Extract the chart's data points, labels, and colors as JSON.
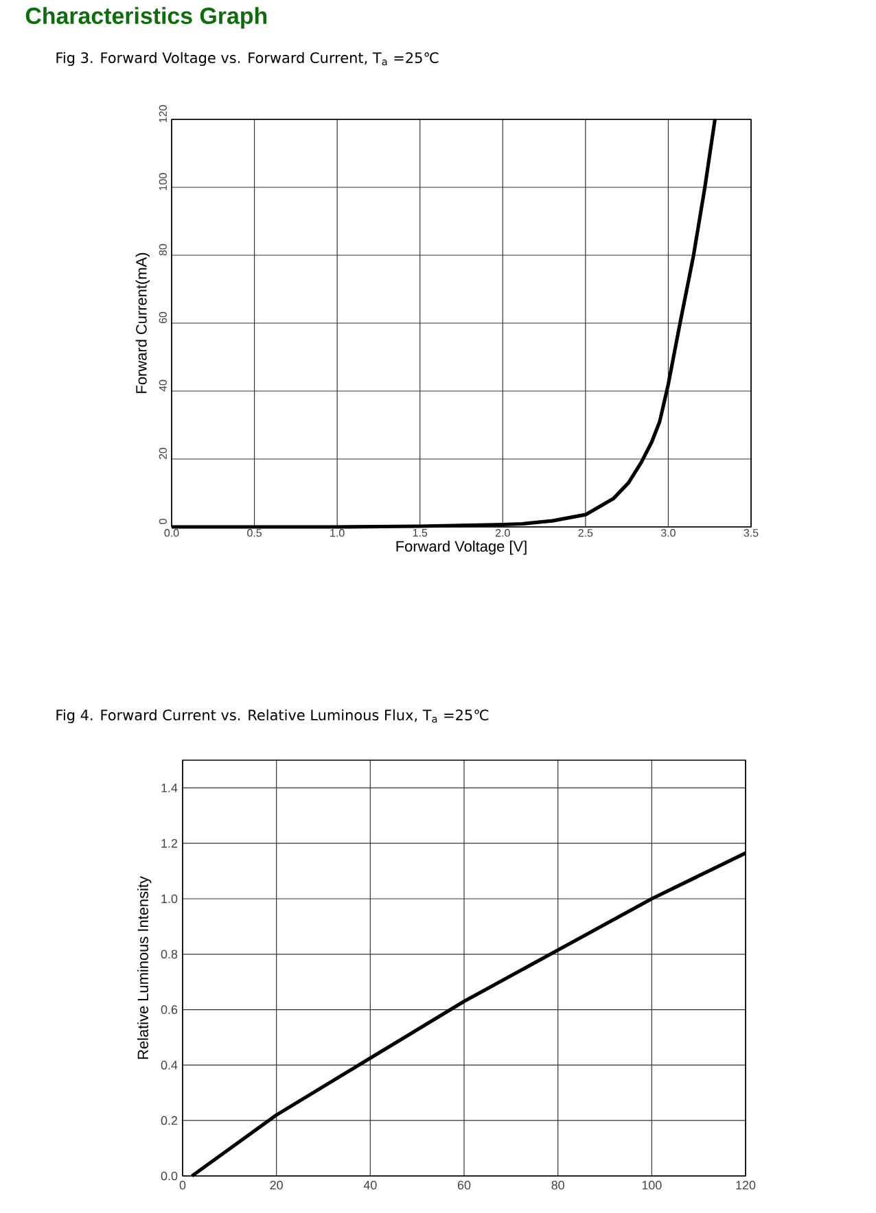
{
  "chart_data": [
    {
      "type": "line",
      "title": "Characteristics Graph",
      "subtitle": "Fig 3. Forward Voltage vs. Forward Current, T$_{a}$ =25℃",
      "xlabel": "Forward Voltage [V]",
      "ylabel": "Forward Current(mA)",
      "xlim": [
        0,
        3.5
      ],
      "ylim": [
        0,
        120
      ],
      "xticks": [
        {
          "value": 0,
          "label": "0.0"
        },
        {
          "value": 0.5,
          "label": "0.5"
        },
        {
          "value": 1,
          "label": "1.0"
        },
        {
          "value": 1.5,
          "label": "1.5"
        },
        {
          "value": 2,
          "label": "2.0"
        },
        {
          "value": 2.5,
          "label": "2.5"
        },
        {
          "value": 3,
          "label": "3.0"
        },
        {
          "value": 3.5,
          "label": "3.5"
        }
      ],
      "yticks": [
        0,
        20,
        40,
        60,
        80,
        100,
        120
      ],
      "grid": true,
      "series": [
        {
          "color": "#000000",
          "x": [
            0,
            0.5,
            1.0,
            1.5,
            1.8,
            2.0,
            2.12,
            2.3,
            2.5,
            2.67,
            2.76,
            2.837,
            2.9,
            2.948,
            3.0,
            3.069,
            3.152,
            3.221,
            3.282
          ],
          "values": [
            0,
            0,
            0,
            0.2,
            0.5,
            0.7,
            0.9,
            1.8,
            3.6,
            8.4,
            13,
            19,
            25,
            31,
            42,
            59.5,
            79.8,
            100,
            120
          ]
        }
      ]
    },
    {
      "type": "line",
      "title": "Fig 4. Forward Current vs. Relative Luminous Flux, T$_{a}$ =25℃",
      "ylabel": "Relative Luminous Intensity",
      "xlim": [
        0,
        120
      ],
      "ylim": [
        0,
        1.5
      ],
      "xticks": [
        0,
        20,
        40,
        60,
        80,
        100,
        120
      ],
      "yticks": [
        {
          "value": 0,
          "label": "0.0"
        },
        {
          "value": 0.2,
          "label": "0.2"
        },
        {
          "value": 0.4,
          "label": "0.4"
        },
        {
          "value": 0.6,
          "label": "0.6"
        },
        {
          "value": 0.8,
          "label": "0.8"
        },
        {
          "value": 1.0,
          "label": "1.0"
        },
        {
          "value": 1.2,
          "label": "1.2"
        },
        {
          "value": 1.4,
          "label": "1.4"
        }
      ],
      "grid": true,
      "series": [
        {
          "color": "#000000",
          "x": [
            2,
            20,
            40,
            60,
            80,
            100,
            120
          ],
          "values": [
            0,
            0.22,
            0.425,
            0.63,
            0.815,
            1.0,
            1.165
          ]
        }
      ]
    }
  ]
}
